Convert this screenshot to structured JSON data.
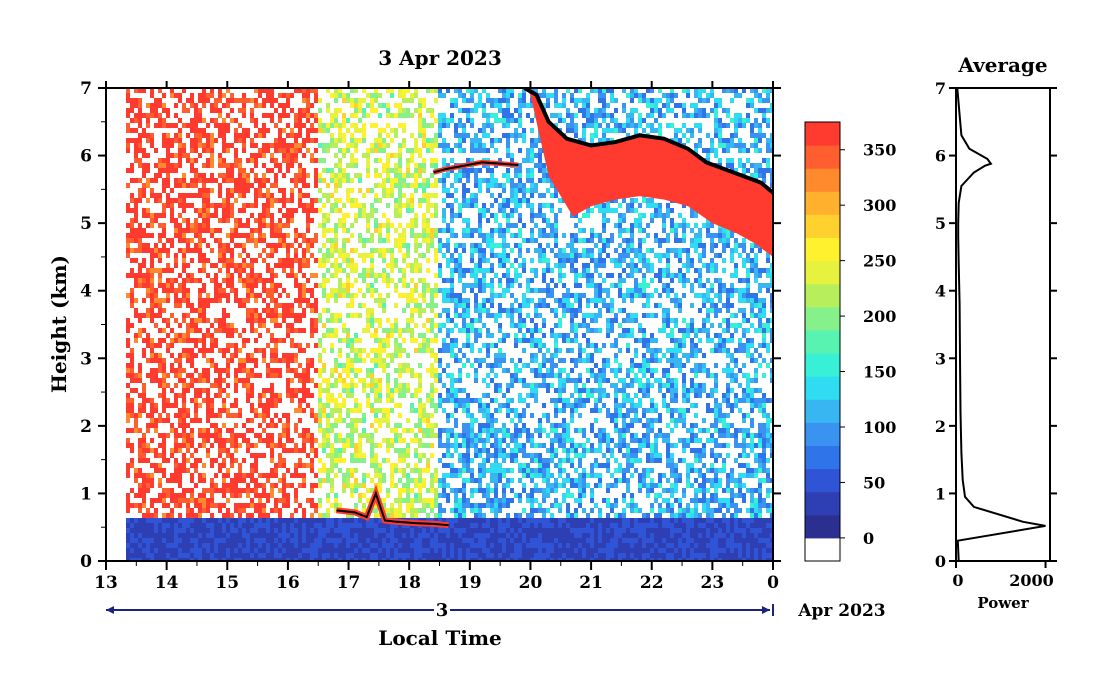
{
  "chart_data": [
    {
      "type": "heatmap",
      "title": "3 Apr 2023",
      "xlabel": "Local Time",
      "ylabel": "Height (km)",
      "x_ticks": [
        "13",
        "14",
        "15",
        "16",
        "17",
        "18",
        "19",
        "20",
        "21",
        "22",
        "23",
        "0"
      ],
      "y_ticks": [
        "0",
        "1",
        "2",
        "3",
        "4",
        "5",
        "6",
        "7"
      ],
      "xlim": [
        13,
        24
      ],
      "ylim": [
        0,
        7
      ],
      "date_axis": {
        "day": "3",
        "month_year": "Apr 2023"
      },
      "colorbar": {
        "ticks": [
          "0",
          "50",
          "100",
          "150",
          "200",
          "250",
          "300",
          "350"
        ],
        "range": [
          0,
          375
        ],
        "colors": [
          "#ffffff",
          "#2b2f8f",
          "#2e3fb4",
          "#2f55d6",
          "#2f74e8",
          "#3a93f0",
          "#37b6f2",
          "#2fdcf2",
          "#38f0d6",
          "#58f3b0",
          "#86f08a",
          "#b7ef5c",
          "#e6f23e",
          "#fff12e",
          "#ffd12e",
          "#ffb12e",
          "#ff8a2e",
          "#ff5e2e",
          "#ff3a2e"
        ]
      },
      "layers": [
        {
          "name": "near-surface layer",
          "x_range": [
            13.3,
            24
          ],
          "height_km": [
            0,
            0.6
          ],
          "value_approx": 40
        },
        {
          "name": "early afternoon return",
          "x_range": [
            13.3,
            16.5
          ],
          "height_km": [
            0.6,
            7
          ],
          "value_approx": 370
        },
        {
          "name": "transition return",
          "x_range": [
            16.5,
            18.5
          ],
          "height_km": [
            0.6,
            7
          ],
          "value_approx": 230
        },
        {
          "name": "evening return",
          "x_range": [
            18.5,
            24
          ],
          "height_km": [
            0.6,
            7
          ],
          "value_approx": 110
        }
      ],
      "cloud_top_trace": {
        "x": [
          19.9,
          20.1,
          20.3,
          20.6,
          21.0,
          21.4,
          21.8,
          22.2,
          22.6,
          22.9,
          23.2,
          23.5,
          23.8,
          24.0
        ],
        "y": [
          7.0,
          6.9,
          6.5,
          6.25,
          6.15,
          6.2,
          6.3,
          6.25,
          6.1,
          5.9,
          5.8,
          5.7,
          5.6,
          5.45
        ]
      },
      "cloud_base": {
        "x": [
          20.0,
          20.3,
          20.7,
          21.0,
          21.4,
          21.8,
          22.2,
          22.6,
          23.0,
          23.4,
          23.7,
          24.0
        ],
        "y": [
          6.9,
          5.7,
          5.1,
          5.25,
          5.35,
          5.4,
          5.35,
          5.25,
          5.0,
          4.85,
          4.7,
          4.5
        ]
      },
      "boundary_layer_trace": {
        "x": [
          16.8,
          17.1,
          17.3,
          17.45,
          17.6,
          17.8,
          18.1,
          18.4,
          18.65
        ],
        "y": [
          0.75,
          0.72,
          0.65,
          1.0,
          0.6,
          0.58,
          0.56,
          0.55,
          0.53
        ]
      },
      "mid_level_trace": {
        "x": [
          18.4,
          18.6,
          18.9,
          19.2,
          19.5,
          19.8
        ],
        "y": [
          5.75,
          5.8,
          5.85,
          5.9,
          5.88,
          5.86
        ]
      }
    },
    {
      "type": "line",
      "title": "Average",
      "xlabel": "Power",
      "x_ticks": [
        "0",
        "2000"
      ],
      "y_ticks": [
        "0",
        "1",
        "2",
        "3",
        "4",
        "5",
        "6",
        "7"
      ],
      "xlim": [
        0,
        2100
      ],
      "ylim": [
        0,
        7
      ],
      "series": [
        {
          "x": [
            60,
            40,
            2000,
            1500,
            400,
            200,
            150,
            120,
            100,
            90,
            80,
            60,
            50,
            50,
            60,
            120,
            400,
            650,
            780,
            700,
            300,
            120,
            80,
            30
          ],
          "y": [
            0.0,
            0.3,
            0.52,
            0.58,
            0.8,
            0.95,
            1.2,
            1.6,
            2.2,
            3.0,
            3.8,
            4.4,
            4.8,
            5.0,
            5.3,
            5.55,
            5.75,
            5.85,
            5.88,
            5.95,
            6.1,
            6.3,
            6.6,
            7.0
          ]
        }
      ]
    }
  ]
}
